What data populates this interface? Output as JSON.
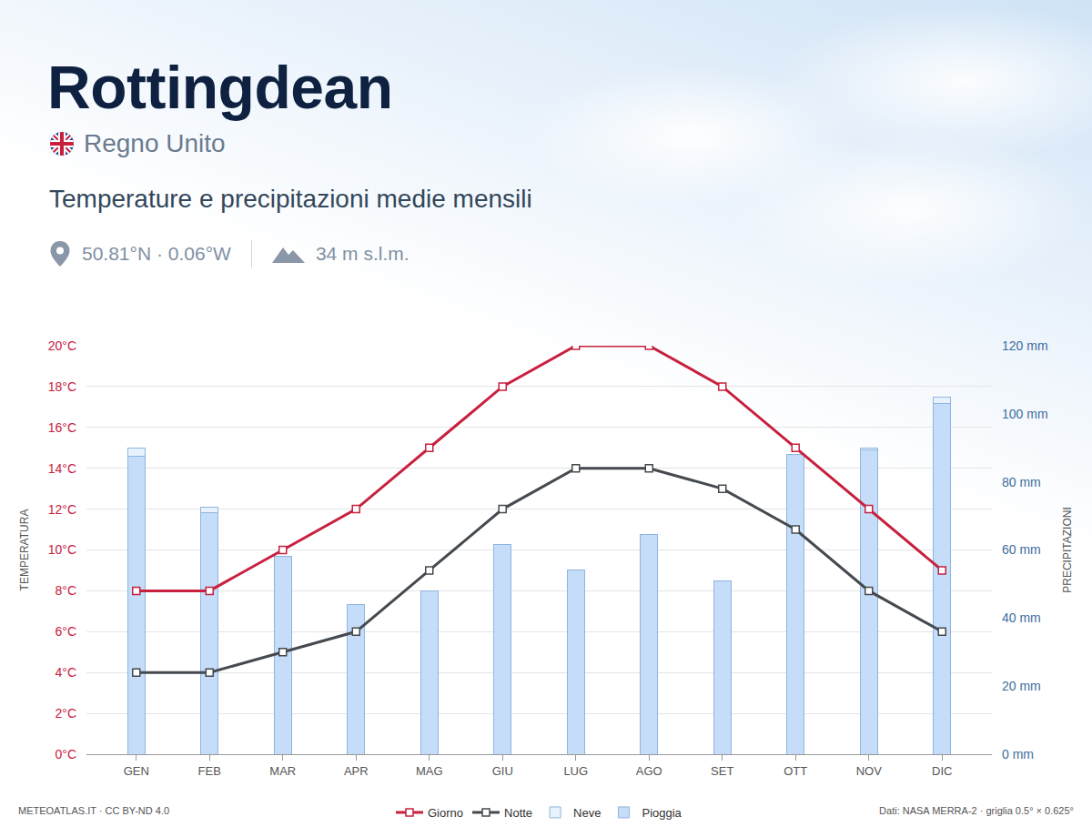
{
  "chart_data": {
    "type": "bar+line",
    "title": "Rottingdean",
    "subtitle": "Regno Unito",
    "annotations": [
      "Temperature e precipitazioni medie mensili",
      "50.81°N · 0.06°W",
      "34 m s.l.m.",
      "METEOATLAS.IT · CC BY-ND 4.0",
      "Dati: NASA MERRA-2 · griglia 0.5° × 0.625°"
    ],
    "ylabel": "TEMPERATURA",
    "y2label": "PRECIPITAZIONI",
    "categories": [
      "GEN",
      "FEB",
      "MAR",
      "APR",
      "MAG",
      "GIU",
      "LUG",
      "AGO",
      "SET",
      "OTT",
      "NOV",
      "DIC"
    ],
    "series": [
      {
        "name": "Giorno",
        "type": "line",
        "color": "#c8203e",
        "marker": "square",
        "line_style": "solid",
        "values": [
          8,
          8,
          10,
          12,
          15,
          18,
          20,
          20,
          18,
          15,
          12,
          9
        ]
      },
      {
        "name": "Notte",
        "type": "line",
        "color": "#454a50",
        "marker": "square",
        "line_style": "solid",
        "values": [
          4,
          4,
          5,
          6,
          9,
          12,
          14,
          14,
          13,
          11,
          8,
          6
        ]
      },
      {
        "name": "Neve",
        "type": "bar",
        "axis": "y2",
        "color": "#e8f2fd",
        "values": [
          2.5,
          1.5,
          0,
          0,
          0,
          0,
          0,
          0,
          0,
          0,
          0.5,
          2
        ]
      },
      {
        "name": "Pioggia",
        "type": "bar",
        "axis": "y2",
        "color": "#c5ddf8",
        "values": [
          87.5,
          71,
          58,
          44,
          48,
          61.5,
          54,
          64.5,
          51,
          88,
          89.5,
          103
        ]
      }
    ],
    "stacked": true,
    "ylim": [
      0,
      20
    ],
    "yticks": [
      {
        "value": 0,
        "label": "0°C"
      },
      {
        "value": 2,
        "label": "2°C"
      },
      {
        "value": 4,
        "label": "4°C"
      },
      {
        "value": 6,
        "label": "6°C"
      },
      {
        "value": 8,
        "label": "8°C"
      },
      {
        "value": 10,
        "label": "10°C"
      },
      {
        "value": 12,
        "label": "12°C"
      },
      {
        "value": 14,
        "label": "14°C"
      },
      {
        "value": 16,
        "label": "16°C"
      },
      {
        "value": 18,
        "label": "18°C"
      },
      {
        "value": 20,
        "label": "20°C"
      }
    ],
    "y2lim": [
      0,
      120
    ],
    "y2ticks": [
      {
        "value": 0,
        "label": "0 mm"
      },
      {
        "value": 20,
        "label": "20 mm"
      },
      {
        "value": 40,
        "label": "40 mm"
      },
      {
        "value": 60,
        "label": "60 mm"
      },
      {
        "value": 80,
        "label": "80 mm"
      },
      {
        "value": 100,
        "label": "100 mm"
      },
      {
        "value": 120,
        "label": "120 mm"
      }
    ],
    "grid": true,
    "legend": "bottom"
  }
}
